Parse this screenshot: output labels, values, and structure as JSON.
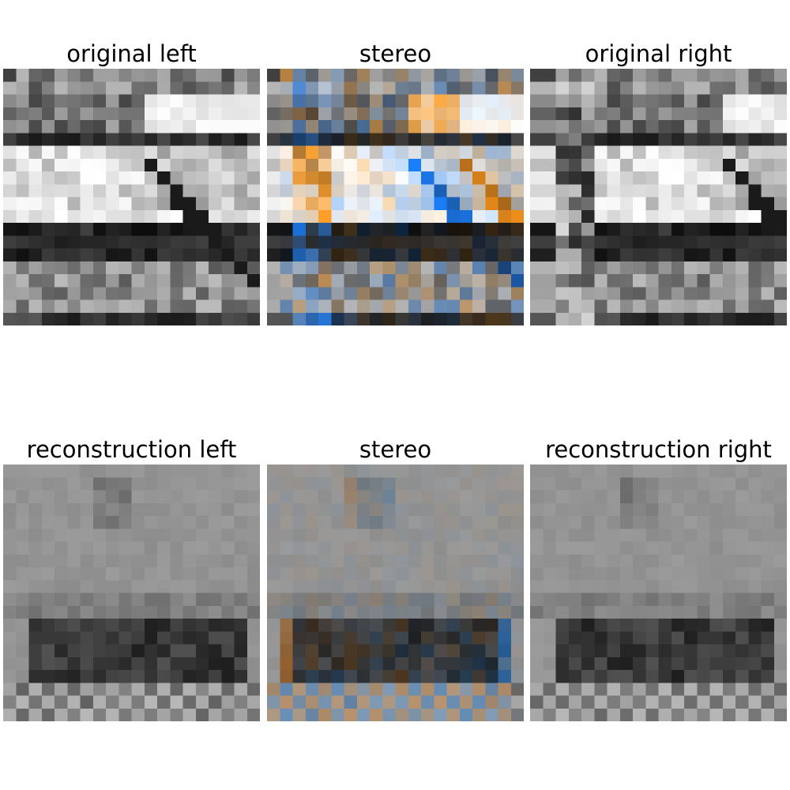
{
  "panels": [
    {
      "title": "original left",
      "kind": "orig-left"
    },
    {
      "title": "stereo",
      "kind": "orig-stereo"
    },
    {
      "title": "original right",
      "kind": "orig-right"
    },
    {
      "title": "reconstruction left",
      "kind": "recon-left"
    },
    {
      "title": "stereo",
      "kind": "recon-stereo"
    },
    {
      "title": "reconstruction right",
      "kind": "recon-right"
    }
  ]
}
